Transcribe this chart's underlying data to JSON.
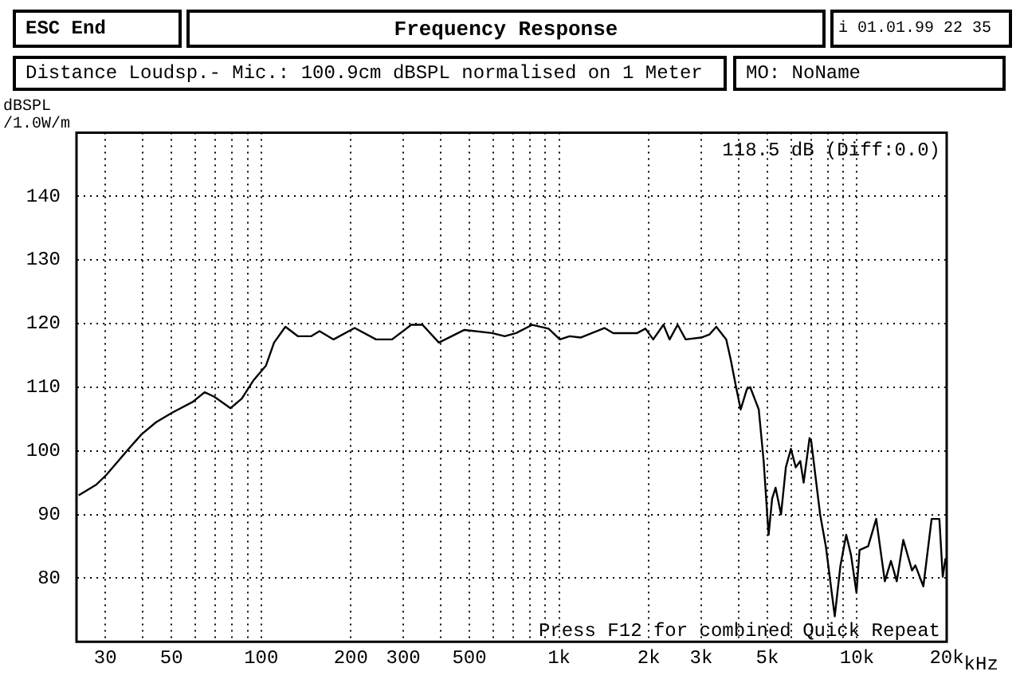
{
  "chart_data": {
    "type": "line",
    "title": "Frequency Response",
    "subtitle": "Distance Loudsp.- Mic.: 100.9cm dBSPL normalised on 1 Meter",
    "ylabel": "dBSPL\n/1.0W/m",
    "annotations": [
      "ESC End",
      "i 01.01.99 22 35",
      "MO: NoName",
      "118.5 dB (Diff:0.0)",
      "Press F12 for combined Quick Repeat"
    ],
    "series": [
      {
        "color": "#000000",
        "x": [
          24.4,
          28,
          30.2,
          35.9,
          39.7,
          44.4,
          50.3,
          59,
          64.6,
          69.6,
          78.9,
          86.1,
          94,
          103.8,
          110.5,
          120.6,
          133,
          147,
          157,
          175,
          206,
          243,
          275,
          319,
          348,
          395,
          481,
          595,
          657,
          718,
          813,
          922,
          1006,
          1085,
          1180,
          1290,
          1420,
          1520,
          1830,
          1950,
          2070,
          2240,
          2350,
          2500,
          2660,
          3000,
          3200,
          3370,
          3640,
          3770,
          3920,
          4070,
          4270,
          4380,
          4680,
          4860,
          5050,
          5190,
          5330,
          5560,
          5770,
          6000,
          6230,
          6450,
          6620,
          6930,
          7020,
          7520,
          7860,
          8420,
          8800,
          9200,
          9550,
          9960,
          10200,
          10900,
          11600,
          12400,
          13000,
          13600,
          14300,
          15300,
          15700,
          16700,
          17800,
          18900,
          19400,
          19800,
          20000
        ],
        "values": [
          93,
          94.7,
          96.2,
          100.3,
          102.6,
          104.5,
          106,
          107.7,
          109.2,
          108.5,
          106.7,
          108.2,
          111,
          113.4,
          117,
          119.5,
          118,
          118,
          118.8,
          117.5,
          119.3,
          117.5,
          117.5,
          119.8,
          119.8,
          117,
          119,
          118.5,
          118,
          118.5,
          119.8,
          119.2,
          117.5,
          118,
          117.8,
          118.5,
          119.3,
          118.5,
          118.5,
          119.2,
          117.5,
          119.8,
          117.5,
          119.8,
          117.5,
          117.8,
          118.3,
          119.5,
          117.5,
          114.3,
          110.2,
          106.5,
          109.7,
          110,
          106.5,
          98.4,
          86.8,
          92.5,
          94.2,
          90,
          97.4,
          100.3,
          97.4,
          98.4,
          95,
          102,
          101.5,
          90,
          85,
          74,
          82,
          86.8,
          83.6,
          77.7,
          84.4,
          85,
          89.3,
          79.5,
          82.7,
          79.5,
          86,
          81.2,
          82,
          78.7,
          89.3,
          89.3,
          80.2,
          83,
          82
        ]
      }
    ],
    "log": "x",
    "xlim": [
      24,
      20000
    ],
    "xticks": [
      {
        "value": 30,
        "label": "30"
      },
      {
        "value": 40,
        "label": null
      },
      {
        "value": 50,
        "label": "50"
      },
      {
        "value": 60,
        "label": null
      },
      {
        "value": 70,
        "label": null
      },
      {
        "value": 80,
        "label": null
      },
      {
        "value": 90,
        "label": null
      },
      {
        "value": 100,
        "label": "100"
      },
      {
        "value": 200,
        "label": "200"
      },
      {
        "value": 300,
        "label": "300"
      },
      {
        "value": 400,
        "label": null
      },
      {
        "value": 500,
        "label": "500"
      },
      {
        "value": 600,
        "label": null
      },
      {
        "value": 700,
        "label": null
      },
      {
        "value": 800,
        "label": null
      },
      {
        "value": 900,
        "label": null
      },
      {
        "value": 1000,
        "label": "1k"
      },
      {
        "value": 2000,
        "label": "2k"
      },
      {
        "value": 3000,
        "label": "3k"
      },
      {
        "value": 4000,
        "label": null
      },
      {
        "value": 5000,
        "label": "5k"
      },
      {
        "value": 6000,
        "label": null
      },
      {
        "value": 7000,
        "label": null
      },
      {
        "value": 8000,
        "label": null
      },
      {
        "value": 9000,
        "label": null
      },
      {
        "value": 10000,
        "label": "10k"
      },
      {
        "value": 20000,
        "label": "20k"
      }
    ],
    "xlabel": "kHz",
    "ylim": [
      70,
      150
    ],
    "yticks": [
      80,
      90,
      100,
      110,
      120,
      130,
      140
    ],
    "grid": true,
    "legend": false,
    "marker": "none",
    "line_style": "solid"
  }
}
